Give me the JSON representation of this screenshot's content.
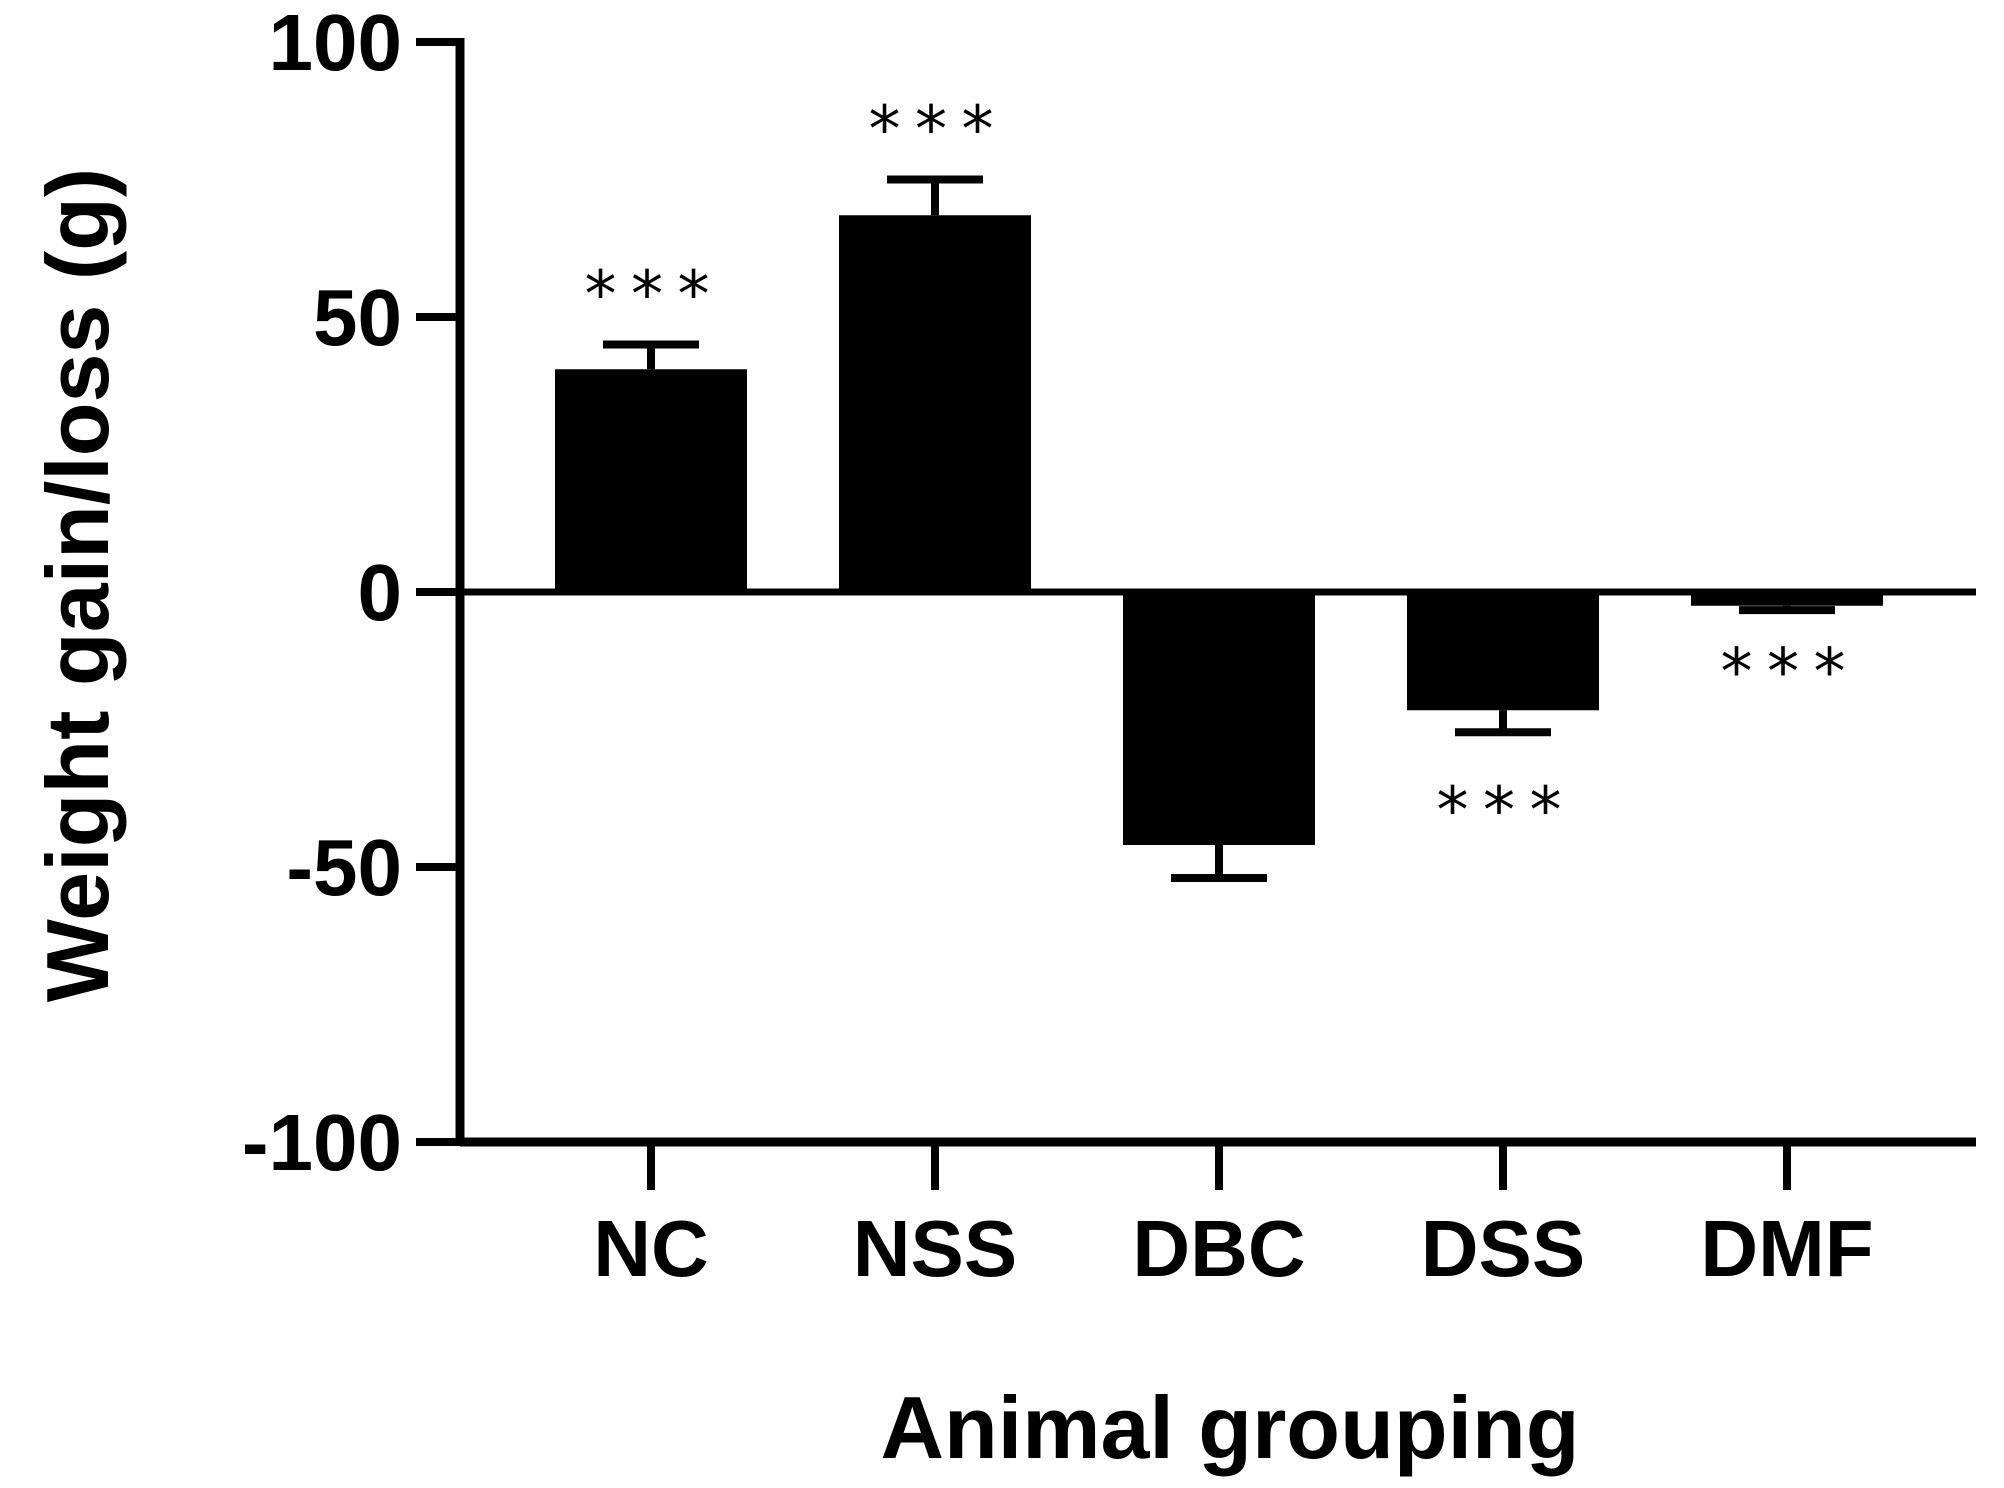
{
  "chart_data": {
    "type": "bar",
    "title": "",
    "xlabel": "Animal grouping",
    "ylabel": "Weight gain/loss (g)",
    "ylim": [
      -100,
      100
    ],
    "yticks": [
      100,
      50,
      0,
      -50,
      -100
    ],
    "ytick_labels": [
      "100",
      "50",
      "0",
      "-50",
      "-100"
    ],
    "grid": false,
    "categories": [
      "NC",
      "NSS",
      "DBC",
      "DSS",
      "DMF"
    ],
    "values": [
      40.5,
      68.5,
      -46,
      -21.5,
      -2.5
    ],
    "errors": [
      4.5,
      6.5,
      6,
      4,
      0.8
    ],
    "significance": [
      "***",
      "***",
      "",
      "***",
      "***"
    ],
    "colors": {
      "bar": "#000000",
      "axis": "#000000",
      "text": "#000000"
    }
  }
}
